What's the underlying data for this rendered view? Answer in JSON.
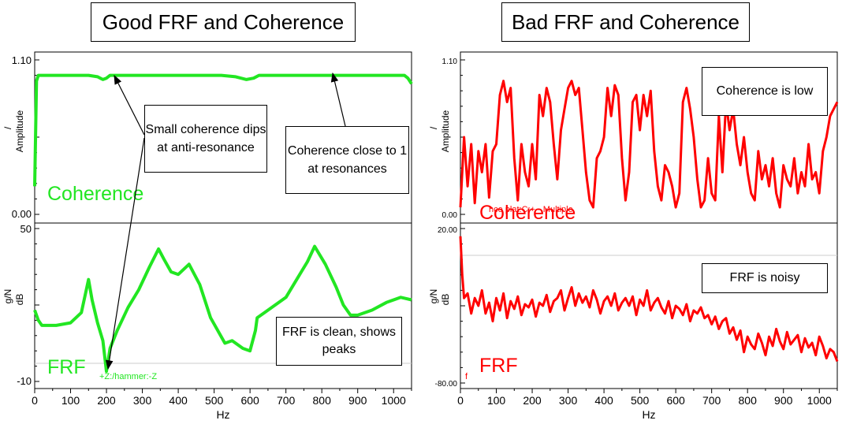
{
  "titles": {
    "good": "Good FRF and Coherence",
    "bad": "Bad FRF and Coherence"
  },
  "callouts": {
    "small_dips": "Small coherence dips at anti-resonance",
    "close_to_one": "Coherence close to 1 at resonances",
    "frf_clean": "FRF is clean, shows peaks",
    "coh_low": "Coherence is low",
    "frf_noisy": "FRF is noisy"
  },
  "colors": {
    "good": "#22e622",
    "bad": "#ff0000",
    "grid_line": "#cccccc"
  },
  "chart_data": [
    {
      "id": "good-coherence",
      "type": "line",
      "big_label": "Coherence",
      "ylabel_unit": "/",
      "ylabel": "Amplitude",
      "yticks": [
        "1.10",
        "0.00"
      ],
      "ylim": [
        0,
        1.1
      ],
      "xlim": [
        0,
        1050
      ],
      "x": [
        0,
        5,
        10,
        150,
        175,
        190,
        200,
        210,
        250,
        520,
        560,
        590,
        610,
        625,
        640,
        700,
        1000,
        1030,
        1040,
        1050
      ],
      "y": [
        0.2,
        0.95,
        0.99,
        0.99,
        0.98,
        0.96,
        0.97,
        0.99,
        0.99,
        0.99,
        0.98,
        0.96,
        0.97,
        0.99,
        0.99,
        0.99,
        0.99,
        0.99,
        0.97,
        0.93
      ]
    },
    {
      "id": "good-frf",
      "type": "line",
      "big_label": "FRF",
      "ylabel_unit": "g/N",
      "ylabel": "dB",
      "yticks": [
        "50",
        "-10"
      ],
      "ylim": [
        -10,
        50
      ],
      "xlim": [
        0,
        1050
      ],
      "annotation": "+Z:/hammer:-Z",
      "x": [
        0,
        10,
        20,
        60,
        100,
        130,
        150,
        160,
        175,
        190,
        200,
        210,
        230,
        260,
        290,
        320,
        345,
        360,
        380,
        400,
        430,
        460,
        490,
        530,
        550,
        580,
        600,
        615,
        620,
        640,
        660,
        700,
        730,
        760,
        780,
        810,
        840,
        860,
        880,
        900,
        940,
        980,
        1020,
        1050
      ],
      "y": [
        18,
        14,
        12,
        12,
        13,
        17,
        30,
        22,
        13,
        6,
        -6,
        3,
        10,
        19,
        26,
        35,
        42,
        38,
        33,
        32,
        36,
        28,
        15,
        5,
        6,
        3,
        2,
        10,
        15,
        17,
        19,
        23,
        30,
        37,
        43,
        36,
        27,
        20,
        16,
        16,
        18,
        21,
        23,
        22
      ]
    },
    {
      "id": "bad-coherence",
      "type": "line",
      "big_label": "Coherence",
      "faint_label": "nce plat:C:+ - Multiple",
      "ylabel_unit": "/",
      "ylabel": "Amplitude",
      "yticks": [
        "1.10",
        "0.00"
      ],
      "ylim": [
        0,
        1.1
      ],
      "xlim": [
        0,
        1050
      ],
      "x": [
        0,
        10,
        20,
        30,
        40,
        50,
        60,
        70,
        80,
        90,
        100,
        110,
        120,
        130,
        140,
        150,
        160,
        170,
        180,
        190,
        200,
        210,
        220,
        230,
        240,
        250,
        260,
        270,
        280,
        290,
        300,
        310,
        320,
        330,
        340,
        350,
        360,
        370,
        380,
        390,
        400,
        410,
        420,
        430,
        440,
        450,
        460,
        470,
        480,
        490,
        500,
        510,
        520,
        530,
        540,
        550,
        560,
        570,
        580,
        590,
        600,
        610,
        620,
        630,
        640,
        650,
        660,
        670,
        680,
        690,
        700,
        710,
        720,
        730,
        740,
        750,
        760,
        770,
        780,
        790,
        800,
        810,
        820,
        830,
        840,
        850,
        860,
        870,
        880,
        890,
        900,
        910,
        920,
        930,
        940,
        950,
        960,
        970,
        980,
        990,
        1000,
        1010,
        1020,
        1030,
        1040,
        1050
      ],
      "y": [
        0.05,
        0.55,
        0.2,
        0.5,
        0.08,
        0.45,
        0.3,
        0.5,
        0.12,
        0.45,
        0.5,
        0.85,
        0.95,
        0.8,
        0.9,
        0.4,
        0.1,
        0.5,
        0.3,
        0.2,
        0.5,
        0.25,
        0.85,
        0.7,
        0.9,
        0.8,
        0.5,
        0.25,
        0.6,
        0.75,
        0.9,
        0.95,
        0.85,
        0.9,
        0.6,
        0.3,
        0.1,
        0.05,
        0.4,
        0.45,
        0.55,
        0.9,
        0.7,
        0.92,
        0.85,
        0.4,
        0.1,
        0.3,
        0.8,
        0.85,
        0.6,
        0.85,
        0.7,
        0.88,
        0.45,
        0.2,
        0.1,
        0.35,
        0.3,
        0.2,
        0.05,
        0.15,
        0.8,
        0.9,
        0.75,
        0.55,
        0.25,
        0.05,
        0.1,
        0.4,
        0.15,
        0.1,
        0.7,
        0.3,
        0.8,
        0.6,
        0.75,
        0.5,
        0.35,
        0.55,
        0.3,
        0.15,
        0.1,
        0.45,
        0.25,
        0.35,
        0.2,
        0.4,
        0.15,
        0.05,
        0.35,
        0.25,
        0.2,
        0.4,
        0.15,
        0.3,
        0.2,
        0.5,
        0.25,
        0.3,
        0.15,
        0.45,
        0.55,
        0.7,
        0.75,
        0.8
      ]
    },
    {
      "id": "bad-frf",
      "type": "line",
      "big_label": "FRF",
      "small_mark": "f",
      "ylabel_unit": "g/N",
      "ylabel": "dB",
      "yticks": [
        "20.00",
        "-80.00"
      ],
      "ylim": [
        -80,
        20
      ],
      "xlim": [
        0,
        1050
      ],
      "x": [
        0,
        5,
        10,
        20,
        30,
        40,
        50,
        60,
        70,
        80,
        90,
        100,
        110,
        120,
        130,
        140,
        150,
        160,
        170,
        180,
        190,
        200,
        210,
        220,
        230,
        240,
        250,
        260,
        270,
        280,
        290,
        300,
        310,
        320,
        330,
        340,
        350,
        360,
        370,
        380,
        390,
        400,
        410,
        420,
        430,
        440,
        450,
        460,
        470,
        480,
        490,
        500,
        510,
        520,
        530,
        540,
        550,
        560,
        570,
        580,
        590,
        600,
        610,
        620,
        630,
        640,
        650,
        660,
        670,
        680,
        690,
        700,
        710,
        720,
        730,
        740,
        750,
        760,
        770,
        780,
        790,
        800,
        810,
        820,
        830,
        840,
        850,
        860,
        870,
        880,
        890,
        900,
        910,
        920,
        930,
        940,
        950,
        960,
        970,
        980,
        990,
        1000,
        1010,
        1020,
        1030,
        1040,
        1050
      ],
      "y": [
        15,
        -10,
        -25,
        -22,
        -35,
        -25,
        -30,
        -20,
        -35,
        -28,
        -40,
        -25,
        -33,
        -22,
        -38,
        -27,
        -32,
        -24,
        -36,
        -29,
        -31,
        -26,
        -37,
        -28,
        -30,
        -23,
        -34,
        -27,
        -25,
        -20,
        -33,
        -25,
        -18,
        -30,
        -22,
        -28,
        -24,
        -31,
        -20,
        -26,
        -35,
        -27,
        -24,
        -30,
        -22,
        -33,
        -28,
        -25,
        -30,
        -24,
        -36,
        -26,
        -30,
        -20,
        -33,
        -28,
        -25,
        -31,
        -35,
        -27,
        -38,
        -30,
        -32,
        -36,
        -29,
        -40,
        -33,
        -35,
        -31,
        -38,
        -36,
        -42,
        -37,
        -45,
        -40,
        -38,
        -48,
        -44,
        -52,
        -46,
        -60,
        -50,
        -55,
        -58,
        -48,
        -54,
        -62,
        -50,
        -56,
        -45,
        -53,
        -58,
        -47,
        -55,
        -52,
        -49,
        -60,
        -51,
        -57,
        -54,
        -62,
        -50,
        -56,
        -64,
        -58,
        -60,
        -66
      ]
    }
  ],
  "shared_axis": {
    "xlabel": "Hz",
    "xticks": [
      "0",
      "100",
      "200",
      "300",
      "400",
      "500",
      "600",
      "700",
      "800",
      "900",
      "1000"
    ]
  }
}
